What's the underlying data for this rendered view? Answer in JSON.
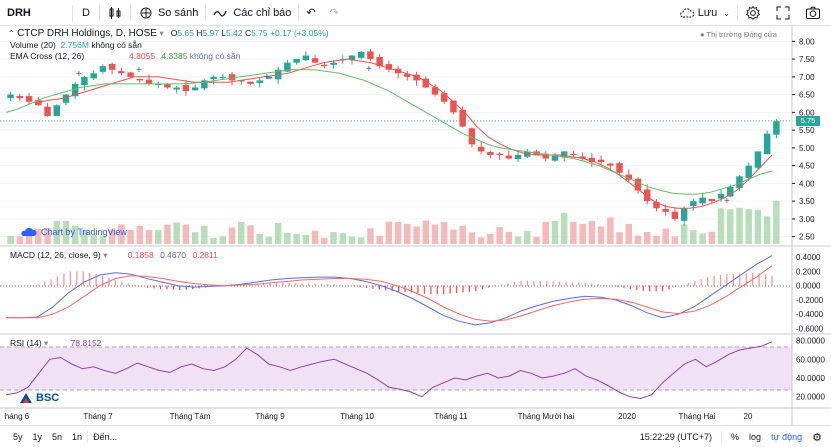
{
  "toolbar": {
    "symbol": "DRH",
    "interval": "D",
    "compare_label": "So sánh",
    "indicators_label": "Các chỉ báo",
    "save_label": "Lưu"
  },
  "legend": {
    "main_title": "CTCP DRH Holdings, D, HOSE",
    "ohlc": {
      "o_label": "O",
      "o": "5.65",
      "h_label": "H",
      "h": "5.97",
      "l_label": "L",
      "l": "5.42",
      "c_label": "C",
      "c": "5.75",
      "change": "+0.17 (+3.05%)"
    },
    "market_status": "Thị trường Đóng cửa",
    "volume_label": "Volume (20)",
    "volume_value": "2.756M",
    "volume_na": "không có sẵn",
    "ema_label": "EMA Cross (12, 26)",
    "ema_v1": "4.8055",
    "ema_v2": "4.3385",
    "ema_na": "không có sẵn",
    "macd_label": "MACD (12, 26, close, 9)",
    "macd_v1": "0.1858",
    "macd_v2": "0.4670",
    "macd_v3": "0.2811",
    "rsi_label": "RSI (14)",
    "rsi_value": "78.8152",
    "tv_link": "Chart by TradingView"
  },
  "price_tag": "5.75",
  "brand": "BSC",
  "axes": {
    "price_ticks": [
      "8.00",
      "7.50",
      "7.00",
      "6.50",
      "6.00",
      "5.50",
      "5.00",
      "4.50",
      "4.00",
      "3.50",
      "3.00",
      "2.50"
    ],
    "macd_ticks": [
      "0.4000",
      "0.2000",
      "0.0000",
      "-0.2000",
      "-0.4000",
      "-0.6000"
    ],
    "rsi_ticks": [
      "80.0000",
      "60.0000",
      "40.0000",
      "20.0000"
    ],
    "time_ticks": [
      "háng 6",
      "Tháng 7",
      "Tháng Tám",
      "Tháng 9",
      "Tháng 10",
      "Tháng 11",
      "Tháng Mười hai",
      "2020",
      "Tháng Hai",
      "20"
    ]
  },
  "bottom": {
    "ranges": [
      "5y",
      "1y",
      "5n",
      "1n"
    ],
    "goto": "Đến...",
    "time": "15:22:29 (UTC+7)",
    "percent": "%",
    "log": "log",
    "auto": "tự động"
  },
  "colors": {
    "up": "#26a69a",
    "down": "#ef5350",
    "ema_fast": "#ef5350",
    "ema_slow": "#66bb6a",
    "macd": "#5b6ee1",
    "signal": "#ef6c6c",
    "rsi": "#8e44ad"
  },
  "chart_data": {
    "type": "candlestick",
    "price_range": [
      2.35,
      8.15
    ],
    "close_path": [
      6.5,
      6.4,
      6.3,
      6.2,
      5.9,
      6.2,
      6.5,
      6.8,
      7.0,
      7.1,
      7.3,
      7.2,
      7.1,
      7.0,
      6.9,
      6.8,
      6.8,
      6.7,
      6.7,
      6.6,
      6.7,
      6.9,
      7.0,
      7.0,
      6.9,
      6.9,
      6.8,
      6.9,
      7.0,
      7.2,
      7.4,
      7.5,
      7.6,
      7.4,
      7.3,
      7.4,
      7.5,
      7.6,
      7.7,
      7.5,
      7.3,
      7.2,
      7.1,
      7.0,
      6.9,
      6.7,
      6.5,
      6.3,
      6.0,
      5.6,
      5.1,
      4.9,
      4.8,
      4.8,
      4.7,
      4.8,
      4.9,
      4.8,
      4.7,
      4.8,
      4.9,
      4.8,
      4.7,
      4.6,
      4.6,
      4.5,
      4.3,
      4.1,
      3.8,
      3.5,
      3.3,
      3.2,
      3.0,
      3.3,
      3.5,
      3.6,
      3.5,
      3.7,
      3.9,
      4.2,
      4.5,
      4.9,
      5.4,
      5.75
    ],
    "ema_fast_path": [
      6.3,
      6.35,
      6.4,
      6.5,
      6.6,
      6.7,
      6.8,
      6.9,
      7.0,
      7.0,
      7.0,
      6.95,
      6.9,
      6.85,
      6.85,
      6.85,
      6.85,
      6.9,
      6.95,
      7.0,
      7.05,
      7.1,
      7.2,
      7.3,
      7.4,
      7.45,
      7.5,
      7.45,
      7.4,
      7.3,
      7.2,
      7.1,
      7.0,
      6.8,
      6.6,
      6.3,
      6.0,
      5.6,
      5.3,
      5.1,
      4.95,
      4.85,
      4.8,
      4.8,
      4.8,
      4.75,
      4.7,
      4.6,
      4.45,
      4.25,
      4.0,
      3.75,
      3.5,
      3.35,
      3.3,
      3.3,
      3.35,
      3.45,
      3.6,
      3.8,
      4.1,
      4.45,
      4.8
    ],
    "ema_slow_path": [
      6.0,
      6.1,
      6.25,
      6.4,
      6.5,
      6.6,
      6.7,
      6.75,
      6.8,
      6.8,
      6.8,
      6.8,
      6.8,
      6.8,
      6.8,
      6.82,
      6.85,
      6.9,
      6.95,
      7.0,
      7.05,
      7.1,
      7.15,
      7.2,
      7.2,
      7.2,
      7.15,
      7.1,
      7.0,
      6.9,
      6.75,
      6.6,
      6.4,
      6.2,
      6.0,
      5.8,
      5.6,
      5.4,
      5.25,
      5.1,
      5.0,
      4.95,
      4.9,
      4.85,
      4.8,
      4.75,
      4.7,
      4.6,
      4.5,
      4.35,
      4.2,
      4.05,
      3.9,
      3.8,
      3.72,
      3.7,
      3.7,
      3.75,
      3.85,
      3.95,
      4.1,
      4.25,
      4.35
    ],
    "macd_range": [
      -0.65,
      0.5
    ],
    "rsi_range": [
      10,
      85
    ],
    "rsi_last": 78.8152
  }
}
